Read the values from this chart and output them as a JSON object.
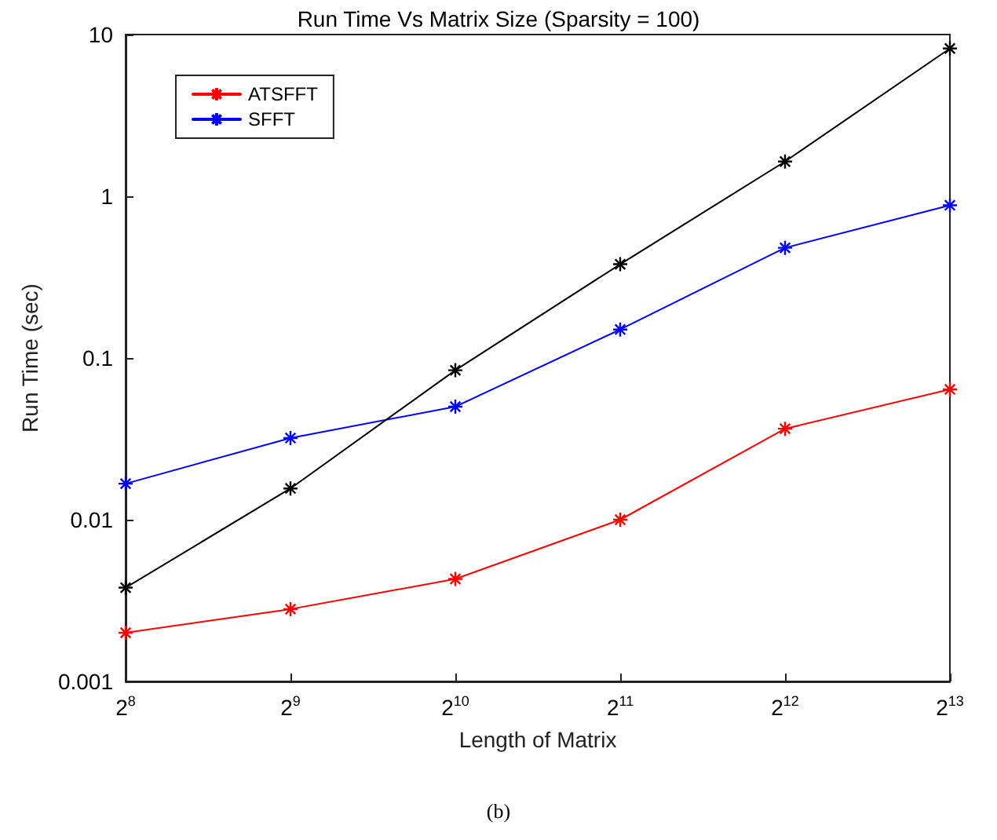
{
  "chart_data": {
    "type": "line",
    "title": "Run Time Vs Matrix Size (Sparsity = 100)",
    "xlabel": "Length of Matrix",
    "ylabel": "Run Time (sec)",
    "annotations": [
      "(b)"
    ],
    "x": [
      256,
      512,
      1024,
      2048,
      4096,
      8192
    ],
    "series": [
      {
        "name": "ATSFFT",
        "color": "#ff0000",
        "values": [
          0.002,
          0.0028,
          0.0043,
          0.01,
          0.0365,
          0.064
        ]
      },
      {
        "name": "SFFT",
        "color": "#0000ff",
        "values": [
          0.0167,
          0.032,
          0.05,
          0.15,
          0.48,
          0.88
        ]
      },
      {
        "color": "#000000",
        "values": [
          0.0038,
          0.0156,
          0.084,
          0.38,
          1.64,
          8.2
        ]
      }
    ],
    "log": "xy",
    "xlim": [
      256,
      8192
    ],
    "ylim": [
      0.001,
      10
    ],
    "xticks": [
      {
        "value": 256,
        "label": "2$^{8}$"
      },
      {
        "value": 512,
        "label": "2$^{9}$"
      },
      {
        "value": 1024,
        "label": "2$^{10}$"
      },
      {
        "value": 2048,
        "label": "2$^{11}$"
      },
      {
        "value": 4096,
        "label": "2$^{12}$"
      },
      {
        "value": 8192,
        "label": "2$^{13}$"
      }
    ],
    "yticks": [
      0.001,
      0.01,
      0.1,
      1,
      10
    ],
    "grid": false,
    "legend": "top left",
    "marker": "cross",
    "line_style": "solid"
  }
}
